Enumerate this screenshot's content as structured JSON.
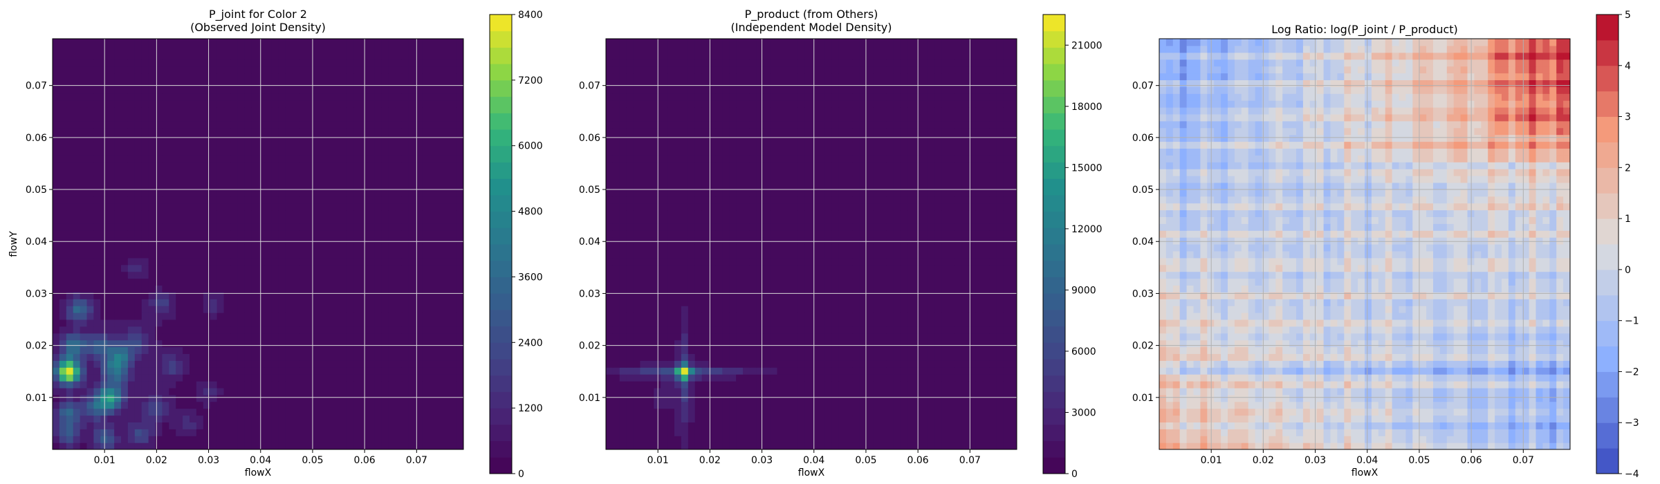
{
  "chart_data": [
    {
      "type": "heatmap",
      "title": "P_joint for Color 2\n(Observed Joint Density)",
      "xlabel": "flowX",
      "ylabel": "flowY",
      "xlim": [
        0,
        0.079
      ],
      "ylim": [
        0,
        0.079
      ],
      "xticks": [
        0.01,
        0.02,
        0.03,
        0.04,
        0.05,
        0.06,
        0.07
      ],
      "yticks": [
        0.01,
        0.02,
        0.03,
        0.04,
        0.05,
        0.06,
        0.07
      ],
      "grid": true,
      "colormap": "viridis",
      "colorbar": {
        "min": 0,
        "max": 8400,
        "ticks": [
          0,
          1200,
          2400,
          3600,
          4800,
          6000,
          7200,
          8400
        ]
      },
      "hotspots": [
        {
          "x": 0.003,
          "y": 0.015,
          "v": 8200
        },
        {
          "x": 0.011,
          "y": 0.01,
          "v": 5200
        },
        {
          "x": 0.005,
          "y": 0.027,
          "v": 3200
        },
        {
          "x": 0.004,
          "y": 0.02,
          "v": 3600
        },
        {
          "x": 0.013,
          "y": 0.018,
          "v": 3400
        },
        {
          "x": 0.012,
          "y": 0.015,
          "v": 3000
        },
        {
          "x": 0.009,
          "y": 0.02,
          "v": 2600
        },
        {
          "x": 0.003,
          "y": 0.007,
          "v": 3000
        },
        {
          "x": 0.008,
          "y": 0.008,
          "v": 2400
        },
        {
          "x": 0.003,
          "y": 0.003,
          "v": 2600
        },
        {
          "x": 0.01,
          "y": 0.002,
          "v": 2600
        },
        {
          "x": 0.017,
          "y": 0.003,
          "v": 2000
        },
        {
          "x": 0.02,
          "y": 0.008,
          "v": 1800
        },
        {
          "x": 0.016,
          "y": 0.021,
          "v": 1800
        },
        {
          "x": 0.021,
          "y": 0.028,
          "v": 1600
        },
        {
          "x": 0.023,
          "y": 0.016,
          "v": 1500
        },
        {
          "x": 0.031,
          "y": 0.028,
          "v": 1400
        },
        {
          "x": 0.03,
          "y": 0.011,
          "v": 1200
        },
        {
          "x": 0.016,
          "y": 0.035,
          "v": 1100
        },
        {
          "x": 0.026,
          "y": 0.005,
          "v": 1200
        }
      ]
    },
    {
      "type": "heatmap",
      "title": "P_product (from Others)\n(Independent Model Density)",
      "xlabel": "flowX",
      "ylabel": "",
      "xlim": [
        0,
        0.079
      ],
      "ylim": [
        0,
        0.079
      ],
      "xticks": [
        0.01,
        0.02,
        0.03,
        0.04,
        0.05,
        0.06,
        0.07
      ],
      "yticks": [
        0.01,
        0.02,
        0.03,
        0.04,
        0.05,
        0.06,
        0.07
      ],
      "grid": true,
      "colormap": "viridis",
      "colorbar": {
        "min": 0,
        "max": 22500,
        "ticks": [
          0,
          3000,
          6000,
          9000,
          12000,
          15000,
          18000,
          21000
        ]
      },
      "peak": {
        "x": 0.015,
        "y": 0.015,
        "v": 21000
      }
    },
    {
      "type": "heatmap",
      "title": "Log Ratio: log(P_joint / P_product)",
      "xlabel": "flowX",
      "ylabel": "",
      "xlim": [
        0,
        0.079
      ],
      "ylim": [
        0,
        0.079
      ],
      "xticks": [
        0.01,
        0.02,
        0.03,
        0.04,
        0.05,
        0.06,
        0.07
      ],
      "yticks": [
        0.01,
        0.02,
        0.03,
        0.04,
        0.05,
        0.06,
        0.07
      ],
      "grid": true,
      "colormap": "coolwarm",
      "colorbar": {
        "min": -4,
        "max": 5,
        "ticks": [
          -4,
          -3,
          -2,
          -1,
          0,
          1,
          2,
          3,
          4,
          5
        ]
      }
    }
  ]
}
